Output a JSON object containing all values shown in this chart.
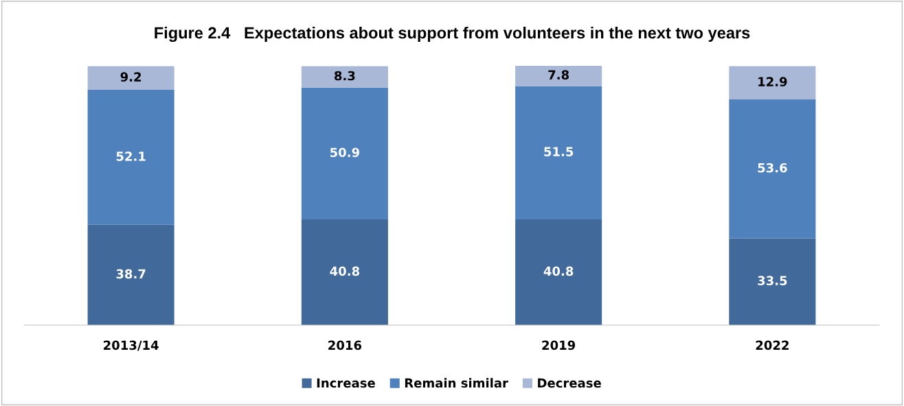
{
  "chart_data": {
    "type": "bar",
    "stacked": true,
    "title": "Figure 2.4   Expectations about support from volunteers in the next two years",
    "categories": [
      "2013/14",
      "2016",
      "2019",
      "2022"
    ],
    "series": [
      {
        "name": "Increase",
        "color": "#41699a",
        "values": [
          38.7,
          40.8,
          40.8,
          33.5
        ]
      },
      {
        "name": "Remain similar",
        "color": "#4f81bd",
        "values": [
          52.1,
          50.9,
          51.5,
          53.6
        ]
      },
      {
        "name": "Decrease",
        "color": "#a9b8d7",
        "values": [
          9.2,
          8.3,
          7.8,
          12.9
        ]
      }
    ],
    "data_labels": true,
    "legend": "bottom",
    "grid": false
  }
}
